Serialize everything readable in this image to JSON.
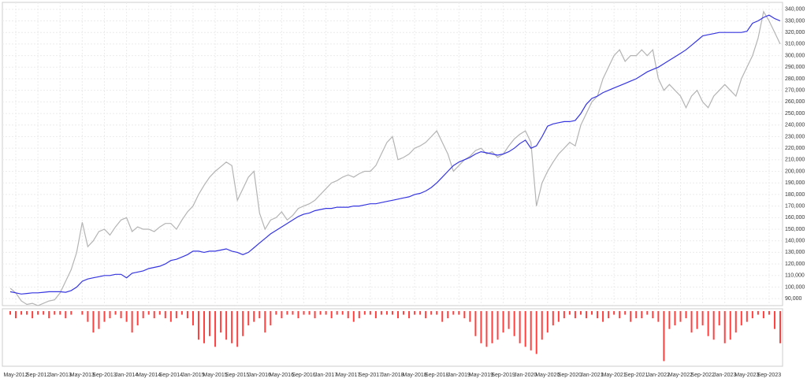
{
  "chart_data": [
    {
      "type": "line",
      "x": [
        "Apr-2012",
        "May-2012",
        "Jun-2012",
        "Jul-2012",
        "Aug-2012",
        "Sep-2012",
        "Oct-2012",
        "Nov-2012",
        "Dec-2012",
        "Jan-2013",
        "Feb-2013",
        "Mar-2013",
        "Apr-2013",
        "May-2013",
        "Jun-2013",
        "Jul-2013",
        "Aug-2013",
        "Sep-2013",
        "Oct-2013",
        "Nov-2013",
        "Dec-2013",
        "Jan-2014",
        "Feb-2014",
        "Mar-2014",
        "Apr-2014",
        "May-2014",
        "Jun-2014",
        "Jul-2014",
        "Aug-2014",
        "Sep-2014",
        "Oct-2014",
        "Nov-2014",
        "Dec-2014",
        "Jan-2015",
        "Feb-2015",
        "Mar-2015",
        "Apr-2015",
        "May-2015",
        "Jun-2015",
        "Jul-2015",
        "Aug-2015",
        "Sep-2015",
        "Oct-2015",
        "Nov-2015",
        "Dec-2015",
        "Jan-2016",
        "Feb-2016",
        "Mar-2016",
        "Apr-2016",
        "May-2016",
        "Jun-2016",
        "Jul-2016",
        "Aug-2016",
        "Sep-2016",
        "Oct-2016",
        "Nov-2016",
        "Dec-2016",
        "Jan-2017",
        "Feb-2017",
        "Mar-2017",
        "Apr-2017",
        "May-2017",
        "Jun-2017",
        "Jul-2017",
        "Aug-2017",
        "Sep-2017",
        "Oct-2017",
        "Nov-2017",
        "Dec-2017",
        "Jan-2018",
        "Feb-2018",
        "Mar-2018",
        "Apr-2018",
        "May-2018",
        "Jun-2018",
        "Jul-2018",
        "Aug-2018",
        "Sep-2018",
        "Oct-2018",
        "Nov-2018",
        "Dec-2018",
        "Jan-2019",
        "Feb-2019",
        "Mar-2019",
        "Apr-2019",
        "May-2019",
        "Jun-2019",
        "Jul-2019",
        "Aug-2019",
        "Sep-2019",
        "Oct-2019",
        "Nov-2019",
        "Dec-2019",
        "Jan-2020",
        "Feb-2020",
        "Mar-2020",
        "Apr-2020",
        "May-2020",
        "Jun-2020",
        "Jul-2020",
        "Aug-2020",
        "Sep-2020",
        "Oct-2020",
        "Nov-2020",
        "Dec-2020",
        "Jan-2021",
        "Feb-2021",
        "Mar-2021",
        "Apr-2021",
        "May-2021",
        "Jun-2021",
        "Jul-2021",
        "Aug-2021",
        "Sep-2021",
        "Oct-2021",
        "Nov-2021",
        "Dec-2021",
        "Jan-2022",
        "Feb-2022",
        "Mar-2022",
        "Apr-2022",
        "May-2022",
        "Jun-2022",
        "Jul-2022",
        "Aug-2022",
        "Sep-2022",
        "Oct-2022",
        "Nov-2022",
        "Dec-2022",
        "Jan-2023",
        "Feb-2023",
        "Mar-2023",
        "Apr-2023",
        "May-2023",
        "Jun-2023",
        "Jul-2023",
        "Aug-2023",
        "Sep-2023",
        "Oct-2023",
        "Nov-2023"
      ],
      "series": [
        {
          "color": "#b4b4b4",
          "values": [
            99000,
            95000,
            88000,
            85000,
            86000,
            84000,
            86000,
            88000,
            89000,
            95000,
            105000,
            115000,
            130000,
            156000,
            135000,
            140000,
            148000,
            150000,
            145000,
            152000,
            158000,
            160000,
            148000,
            152000,
            150000,
            150000,
            148000,
            152000,
            155000,
            155000,
            150000,
            158000,
            165000,
            170000,
            180000,
            188000,
            195000,
            200000,
            204000,
            208000,
            205000,
            175000,
            185000,
            195000,
            200000,
            164000,
            150000,
            158000,
            160000,
            165000,
            158000,
            162000,
            168000,
            170000,
            172000,
            175000,
            180000,
            185000,
            190000,
            192000,
            195000,
            197000,
            195000,
            198000,
            200000,
            200000,
            205000,
            215000,
            225000,
            230000,
            210000,
            212000,
            215000,
            220000,
            222000,
            225000,
            230000,
            235000,
            225000,
            215000,
            200000,
            205000,
            210000,
            213000,
            218000,
            220000,
            215000,
            217000,
            212000,
            215000,
            222000,
            228000,
            232000,
            235000,
            225000,
            170000,
            190000,
            200000,
            208000,
            215000,
            220000,
            225000,
            222000,
            240000,
            250000,
            260000,
            265000,
            280000,
            290000,
            300000,
            305000,
            295000,
            300000,
            300000,
            305000,
            300000,
            305000,
            280000,
            270000,
            275000,
            270000,
            265000,
            255000,
            265000,
            270000,
            260000,
            255000,
            265000,
            270000,
            275000,
            270000,
            265000,
            280000,
            290000,
            300000,
            315000,
            338000,
            330000,
            320000,
            310000
          ]
        },
        {
          "color": "#3535e0",
          "values": [
            96000,
            95000,
            94000,
            94500,
            95000,
            95000,
            95500,
            96000,
            96000,
            96000,
            95500,
            97000,
            100000,
            105000,
            107000,
            108000,
            109000,
            110000,
            110000,
            111000,
            111000,
            108000,
            112000,
            113000,
            114000,
            116000,
            117000,
            118000,
            120000,
            123000,
            124000,
            126000,
            128000,
            131000,
            131000,
            130000,
            131000,
            131000,
            132000,
            133000,
            131000,
            130000,
            128000,
            130000,
            134000,
            138000,
            142000,
            146000,
            149000,
            152000,
            155000,
            158000,
            161000,
            163000,
            164000,
            166000,
            167000,
            168000,
            168000,
            169000,
            169000,
            169000,
            170000,
            170000,
            171000,
            172000,
            172000,
            173000,
            174000,
            175000,
            176000,
            177000,
            178000,
            180000,
            181000,
            183000,
            186000,
            190000,
            195000,
            200000,
            205000,
            208000,
            210000,
            212000,
            215000,
            217000,
            216000,
            215000,
            214000,
            215000,
            217000,
            220000,
            224000,
            227000,
            220000,
            222000,
            230000,
            239000,
            241000,
            242000,
            243000,
            243000,
            244000,
            250000,
            258000,
            263000,
            265000,
            268000,
            270000,
            272000,
            274000,
            276000,
            278000,
            280000,
            283000,
            286000,
            288000,
            290000,
            293000,
            296000,
            299000,
            302000,
            305000,
            309000,
            313000,
            317000,
            318000,
            319000,
            320000,
            320000,
            320000,
            320000,
            320000,
            321000,
            328000,
            330000,
            333000,
            335000,
            332000,
            330000
          ]
        }
      ],
      "xticks": [
        "May-2012",
        "Sep-2012",
        "Jan-2013",
        "May-2013",
        "Sep-2013",
        "Jan-2014",
        "May-2014",
        "Sep-2014",
        "Jan-2015",
        "May-2015",
        "Sep-2015",
        "Jan-2016",
        "May-2016",
        "Sep-2016",
        "Jan-2017",
        "May-2017",
        "Sep-2017",
        "Jan-2018",
        "May-2018",
        "Sep-2018",
        "Jan-2019",
        "May-2019",
        "Sep-2019",
        "Jan-2020",
        "May-2020",
        "Sep-2020",
        "Jan-2021",
        "May-2021",
        "Sep-2021",
        "Jan-2022",
        "May-2022",
        "Sep-2022",
        "Jan-2023",
        "May-2023",
        "Sep-2023"
      ],
      "ylim": [
        84000,
        346000
      ],
      "yticks": [
        {
          "value": 90000,
          "label": "90,000"
        },
        {
          "value": 100000,
          "label": "100,000"
        },
        {
          "value": 110000,
          "label": "110,000"
        },
        {
          "value": 120000,
          "label": "120,000"
        },
        {
          "value": 130000,
          "label": "130,000"
        },
        {
          "value": 140000,
          "label": "140,000"
        },
        {
          "value": 150000,
          "label": "150,000"
        },
        {
          "value": 160000,
          "label": "160,000"
        },
        {
          "value": 170000,
          "label": "170,000"
        },
        {
          "value": 180000,
          "label": "180,000"
        },
        {
          "value": 190000,
          "label": "190,000"
        },
        {
          "value": 200000,
          "label": "200,000"
        },
        {
          "value": 210000,
          "label": "210,000"
        },
        {
          "value": 220000,
          "label": "220,000"
        },
        {
          "value": 230000,
          "label": "230,000"
        },
        {
          "value": 240000,
          "label": "240,000"
        },
        {
          "value": 250000,
          "label": "250,000"
        },
        {
          "value": 260000,
          "label": "260,000"
        },
        {
          "value": 270000,
          "label": "270,000"
        },
        {
          "value": 280000,
          "label": "280,000"
        },
        {
          "value": 290000,
          "label": "290,000"
        },
        {
          "value": 300000,
          "label": "300,000"
        },
        {
          "value": 310000,
          "label": "310,000"
        },
        {
          "value": 320000,
          "label": "320,000"
        },
        {
          "value": 330000,
          "label": "330,000"
        },
        {
          "value": 340000,
          "label": "340,000"
        }
      ],
      "grid": true
    },
    {
      "type": "bar",
      "color": "#ff4040",
      "ylim": [
        -15,
        0
      ],
      "values": [
        -1,
        -2,
        -1,
        -1,
        -2,
        -1,
        -1,
        -2,
        -1,
        -1,
        -2,
        -1,
        0,
        -1,
        -3,
        -6,
        -5,
        -3,
        -2,
        -1,
        -2,
        -3,
        -6,
        -4,
        -2,
        -1,
        -2,
        -1,
        -2,
        -3,
        -2,
        -1,
        -2,
        -4,
        -8,
        -9,
        -7,
        -10,
        -6,
        -8,
        -9,
        -10,
        -7,
        -4,
        -3,
        -2,
        -6,
        -4,
        -1,
        -2,
        -1,
        -1,
        -2,
        -1,
        -1,
        -2,
        -1,
        -1,
        -2,
        -1,
        -1,
        -2,
        -3,
        -2,
        -1,
        -1,
        -2,
        -1,
        -1,
        -1,
        -2,
        -1,
        -2,
        -1,
        -1,
        -2,
        -1,
        -1,
        -3,
        -2,
        -1,
        -1,
        -2,
        -3,
        -7,
        -9,
        -10,
        -9,
        -8,
        -6,
        -5,
        -7,
        -9,
        -10,
        -11,
        -12,
        -8,
        -6,
        -4,
        -3,
        -2,
        -1,
        -2,
        -1,
        -2,
        -1,
        -2,
        -3,
        -2,
        -1,
        -2,
        -1,
        -3,
        -2,
        -2,
        -1,
        -2,
        -3,
        -14,
        -5,
        -4,
        -3,
        -2,
        -6,
        -5,
        -4,
        -7,
        -8,
        -4,
        -9,
        -8,
        -6,
        -4,
        -3,
        -2,
        -1,
        -2,
        -1,
        -5,
        -9
      ]
    }
  ]
}
